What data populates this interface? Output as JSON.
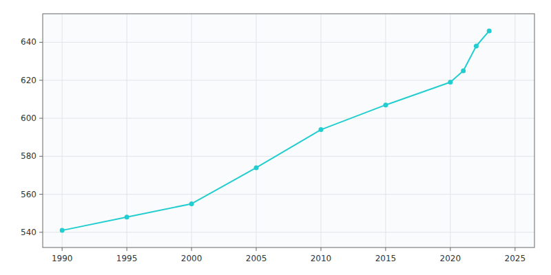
{
  "chart_data": {
    "type": "line",
    "x": [
      1990,
      1995,
      2000,
      2005,
      2010,
      2015,
      2020,
      2021,
      2022,
      2023
    ],
    "values": [
      541,
      548,
      555,
      574,
      594,
      607,
      619,
      625,
      638,
      646
    ],
    "color": "#22cdd0",
    "marker": "circle",
    "xlim": [
      1988.5,
      2026.5
    ],
    "ylim": [
      532,
      655
    ],
    "xticks": [
      1990,
      1995,
      2000,
      2005,
      2010,
      2015,
      2020,
      2025
    ],
    "yticks": [
      540,
      560,
      580,
      600,
      620,
      640
    ],
    "grid": true
  }
}
